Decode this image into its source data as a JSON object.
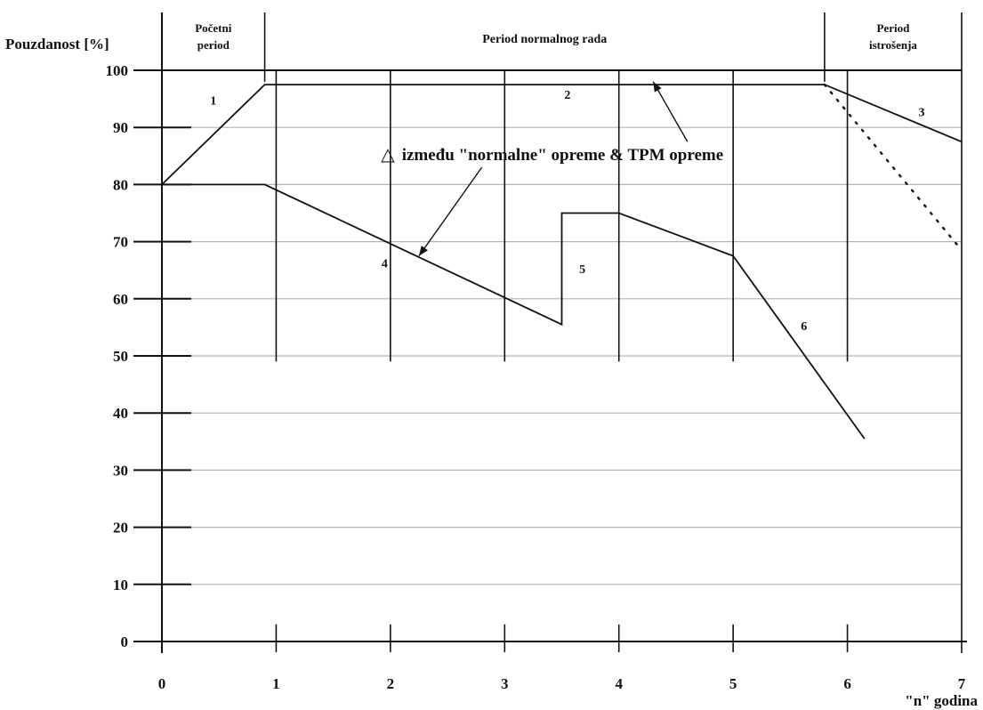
{
  "chart_data": {
    "type": "line",
    "ylabel": "Pouzdanost [%]",
    "xlabel": "\"n\" godina",
    "xlim": [
      0,
      7
    ],
    "ylim": [
      0,
      100
    ],
    "x_ticks": [
      "0",
      "1",
      "2",
      "3",
      "4",
      "5",
      "6",
      "7"
    ],
    "y_ticks": [
      "0",
      "10",
      "20",
      "30",
      "40",
      "50",
      "60",
      "70",
      "80",
      "90",
      "100"
    ],
    "periods": [
      {
        "label_line1": "Početni",
        "label_line2": "period",
        "x_start": 0,
        "x_end": 0.9
      },
      {
        "label_line1": "Period normalnog rada",
        "label_line2": "",
        "x_start": 0.9,
        "x_end": 5.8
      },
      {
        "label_line1": "Period",
        "label_line2": "istrošenja",
        "x_start": 5.8,
        "x_end": 7
      }
    ],
    "series": [
      {
        "x": [
          0,
          0.9,
          5.8,
          7
        ],
        "y": [
          80,
          97.5,
          97.5,
          87.5
        ],
        "style": "solid"
      },
      {
        "x": [
          0,
          0.9,
          3.5,
          3.5,
          4,
          5,
          6.15
        ],
        "y": [
          80,
          80,
          55.5,
          75,
          75,
          67.5,
          35.5
        ],
        "style": "solid"
      },
      {
        "x": [
          5.8,
          7
        ],
        "y": [
          97.5,
          68.5
        ],
        "style": "dotted"
      }
    ],
    "segment_labels": [
      {
        "text": "1",
        "x": 0.45,
        "y": 94
      },
      {
        "text": "2",
        "x": 3.55,
        "y": 95
      },
      {
        "text": "3",
        "x": 6.65,
        "y": 92
      },
      {
        "text": "4",
        "x": 1.95,
        "y": 65.5
      },
      {
        "text": "5",
        "x": 3.68,
        "y": 64.5
      },
      {
        "text": "6",
        "x": 5.62,
        "y": 54.5
      }
    ],
    "annotation": {
      "symbol": "△",
      "text": "između \"normalne\" opreme & TPM opreme",
      "anchor": {
        "x": 2.1,
        "y": 84.3
      },
      "arrow_to_upper": {
        "x": 4.3,
        "y": 98
      },
      "arrow_to_lower": {
        "x": 2.25,
        "y": 67.5
      }
    },
    "grid": true
  }
}
